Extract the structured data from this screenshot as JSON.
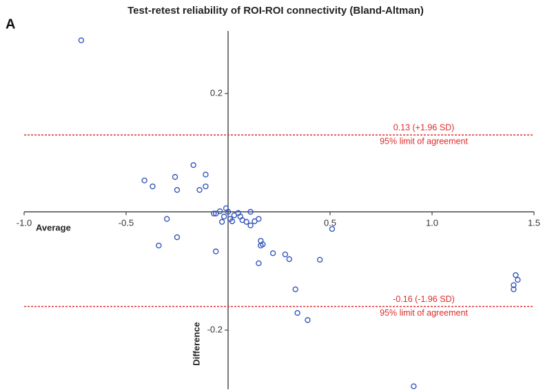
{
  "chart_data": {
    "type": "scatter",
    "panel_label": "A",
    "title": "Test-retest reliability of ROI-ROI connectivity (Bland-Altman)",
    "x_label": "Average",
    "y_label": "Difference",
    "xlim": [
      -1.0,
      1.5
    ],
    "ylim": [
      -0.3,
      0.3
    ],
    "xticks": [
      {
        "value": -1.0,
        "label": "-1.0"
      },
      -0.5,
      0.5,
      {
        "value": 1.0,
        "label": "1.0"
      },
      1.5
    ],
    "yticks": [
      0.2,
      -0.2
    ],
    "color": "#3355bb",
    "reference_color": "#e02a2a",
    "reference_lines": [
      {
        "value": 0.13,
        "label": "0.13 (+1.96 SD)",
        "sublabel": "95% limit of agreement"
      },
      {
        "value": -0.16,
        "label": "-0.16 (-1.96 SD)",
        "sublabel": "95% limit of agreement"
      }
    ],
    "x": [
      -0.72,
      -0.41,
      -0.37,
      -0.26,
      -0.25,
      -0.17,
      -0.11,
      -0.11,
      -0.14,
      -0.3,
      -0.34,
      -0.25,
      -0.06,
      -0.07,
      -0.06,
      -0.04,
      -0.03,
      -0.02,
      -0.01,
      0.0,
      0.01,
      0.02,
      0.03,
      0.05,
      0.06,
      0.07,
      0.09,
      0.11,
      0.11,
      0.13,
      0.15,
      0.16,
      0.17,
      0.16,
      0.15,
      0.22,
      0.28,
      0.3,
      0.45,
      0.51,
      0.33,
      0.34,
      0.39,
      0.91,
      1.4,
      1.4,
      1.41,
      1.42
    ],
    "values": [
      0.29,
      0.053,
      0.043,
      0.059,
      0.037,
      0.079,
      0.063,
      0.043,
      0.037,
      -0.012,
      -0.057,
      -0.043,
      -0.067,
      -0.003,
      -0.003,
      0.001,
      -0.017,
      -0.008,
      0.006,
      0.0,
      -0.012,
      -0.016,
      -0.006,
      -0.002,
      -0.008,
      -0.014,
      -0.017,
      0.0,
      -0.023,
      -0.016,
      -0.012,
      -0.049,
      -0.055,
      -0.057,
      -0.087,
      -0.07,
      -0.072,
      -0.08,
      -0.081,
      -0.029,
      -0.131,
      -0.171,
      -0.183,
      -0.295,
      -0.124,
      -0.131,
      -0.107,
      -0.115
    ]
  }
}
